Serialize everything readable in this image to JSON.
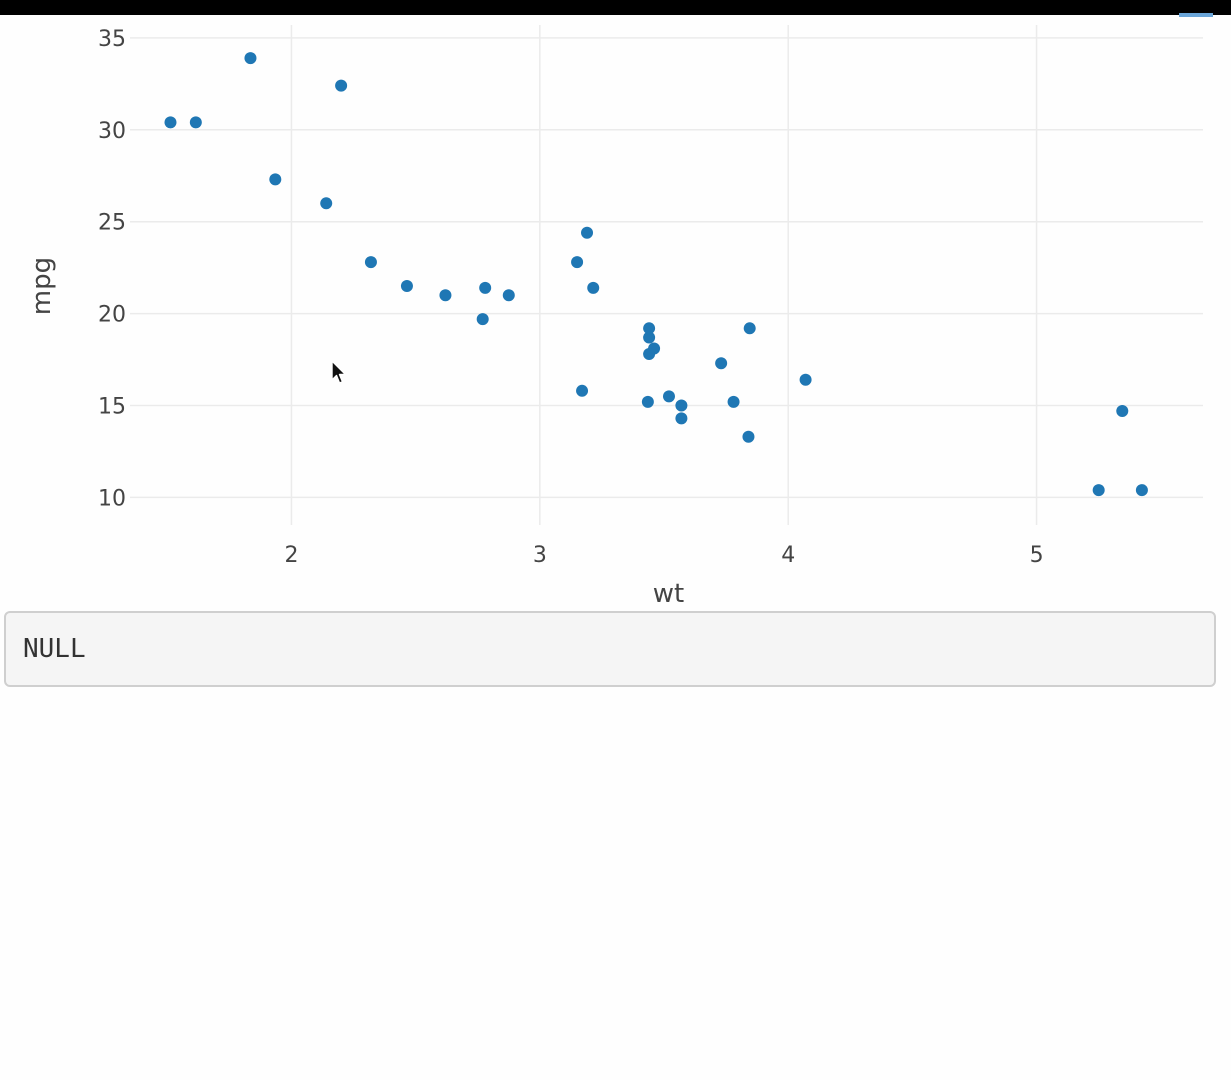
{
  "output": {
    "text": "NULL"
  },
  "chart_data": {
    "type": "scatter",
    "title": "",
    "xlabel": "wt",
    "ylabel": "mpg",
    "xlim": [
      1.35,
      5.67
    ],
    "ylim": [
      8.5,
      35.7
    ],
    "xticks": [
      2,
      3,
      4,
      5
    ],
    "yticks": [
      10,
      15,
      20,
      25,
      30,
      35
    ],
    "grid": true,
    "marker_color": "#1f77b4",
    "series": [
      {
        "points": [
          {
            "x": 2.62,
            "y": 21.0
          },
          {
            "x": 2.875,
            "y": 21.0
          },
          {
            "x": 2.32,
            "y": 22.8
          },
          {
            "x": 3.215,
            "y": 21.4
          },
          {
            "x": 3.44,
            "y": 18.7
          },
          {
            "x": 3.46,
            "y": 18.1
          },
          {
            "x": 3.57,
            "y": 14.3
          },
          {
            "x": 3.19,
            "y": 24.4
          },
          {
            "x": 3.15,
            "y": 22.8
          },
          {
            "x": 3.44,
            "y": 19.2
          },
          {
            "x": 3.44,
            "y": 17.8
          },
          {
            "x": 4.07,
            "y": 16.4
          },
          {
            "x": 3.73,
            "y": 17.3
          },
          {
            "x": 3.78,
            "y": 15.2
          },
          {
            "x": 5.25,
            "y": 10.4
          },
          {
            "x": 5.424,
            "y": 10.4
          },
          {
            "x": 5.345,
            "y": 14.7
          },
          {
            "x": 2.2,
            "y": 32.4
          },
          {
            "x": 1.615,
            "y": 30.4
          },
          {
            "x": 1.835,
            "y": 33.9
          },
          {
            "x": 2.465,
            "y": 21.5
          },
          {
            "x": 3.52,
            "y": 15.5
          },
          {
            "x": 3.435,
            "y": 15.2
          },
          {
            "x": 3.84,
            "y": 13.3
          },
          {
            "x": 3.845,
            "y": 19.2
          },
          {
            "x": 1.935,
            "y": 27.3
          },
          {
            "x": 2.14,
            "y": 26.0
          },
          {
            "x": 1.513,
            "y": 30.4
          },
          {
            "x": 3.17,
            "y": 15.8
          },
          {
            "x": 2.77,
            "y": 19.7
          },
          {
            "x": 3.57,
            "y": 15.0
          },
          {
            "x": 2.78,
            "y": 21.4
          }
        ]
      }
    ]
  }
}
